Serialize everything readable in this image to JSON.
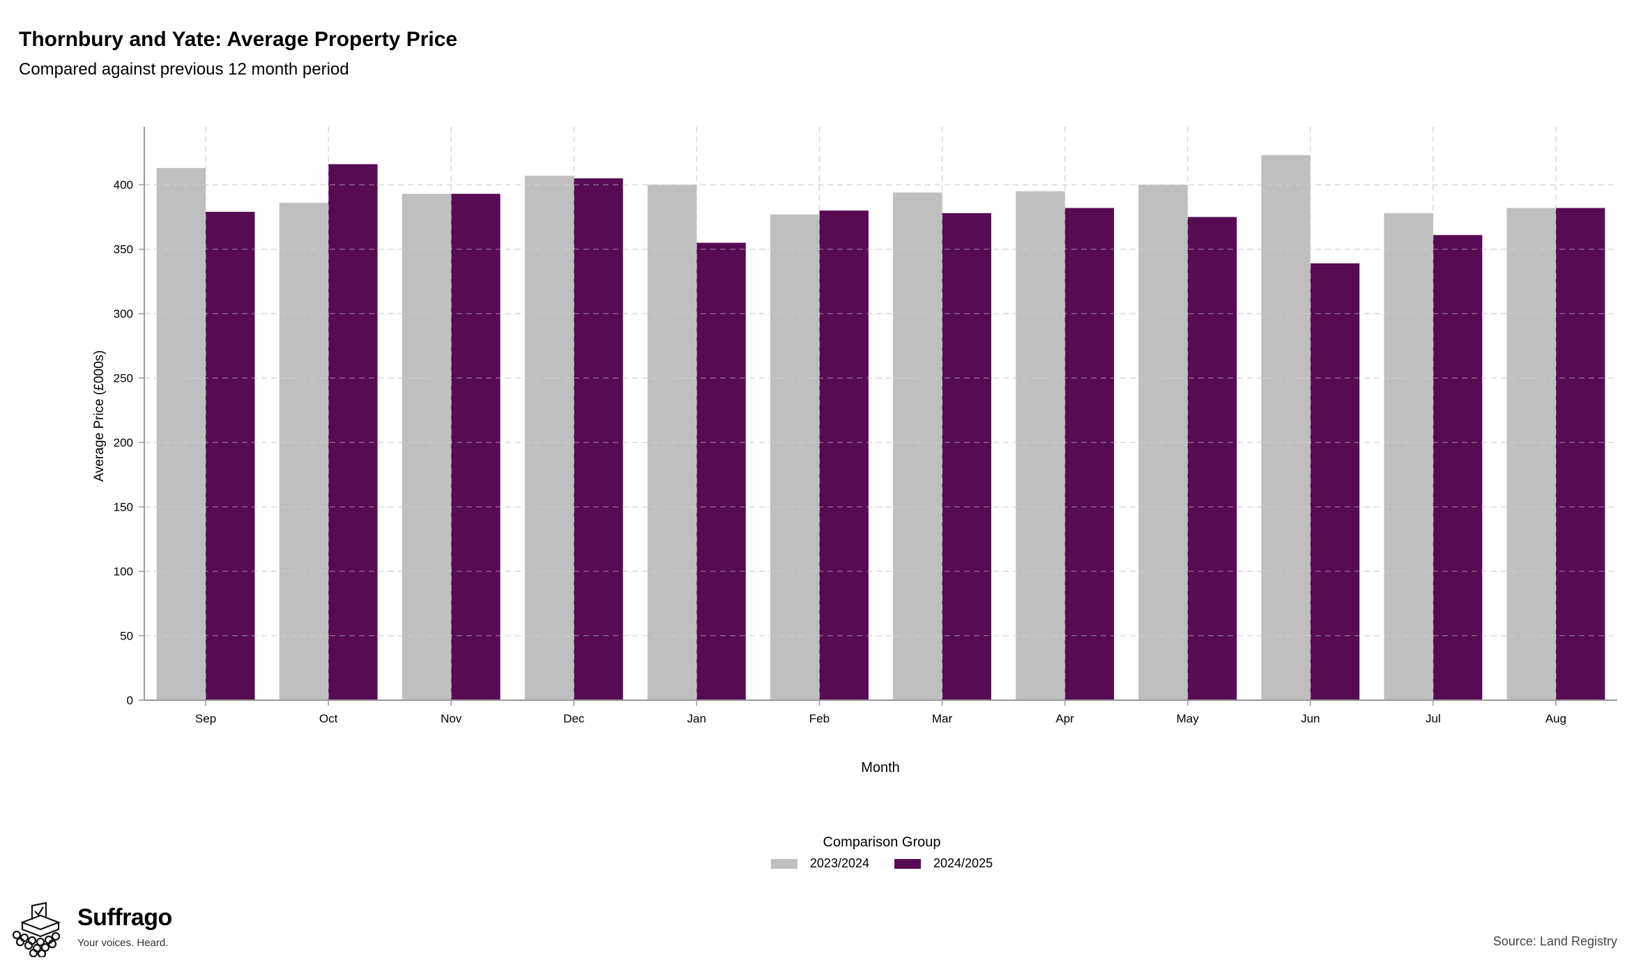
{
  "title": "Thornbury and Yate: Average Property Price",
  "subtitle": "Compared against previous 12 month period",
  "source": "Source: Land Registry",
  "brand": {
    "name": "Suffrago",
    "tagline": "Your voices. Heard.",
    "logo_icon": "ballot-box-icon"
  },
  "legend": {
    "title": "Comparison Group"
  },
  "colors": {
    "series_2023_2024": "#bfbfbf",
    "series_2024_2025": "#560b52",
    "grid": "#d9d9d9",
    "axis": "#999999"
  },
  "chart_data": {
    "type": "bar",
    "title": "Thornbury and Yate: Average Property Price",
    "subtitle": "Compared against previous 12 month period",
    "xlabel": "Month",
    "ylabel": "Average Price (£000s)",
    "ylim": [
      0,
      445
    ],
    "yticks": [
      0,
      50,
      100,
      150,
      200,
      250,
      300,
      350,
      400
    ],
    "grid": true,
    "legend_position": "bottom",
    "categories": [
      "Sep",
      "Oct",
      "Nov",
      "Dec",
      "Jan",
      "Feb",
      "Mar",
      "Apr",
      "May",
      "Jun",
      "Jul",
      "Aug"
    ],
    "series": [
      {
        "name": "2023/2024",
        "color": "#bfbfbf",
        "values": [
          413,
          386,
          393,
          407,
          400,
          377,
          394,
          395,
          400,
          423,
          378,
          382
        ]
      },
      {
        "name": "2024/2025",
        "color": "#560b52",
        "values": [
          379,
          416,
          393,
          405,
          355,
          380,
          378,
          382,
          375,
          339,
          361,
          382
        ]
      }
    ]
  }
}
